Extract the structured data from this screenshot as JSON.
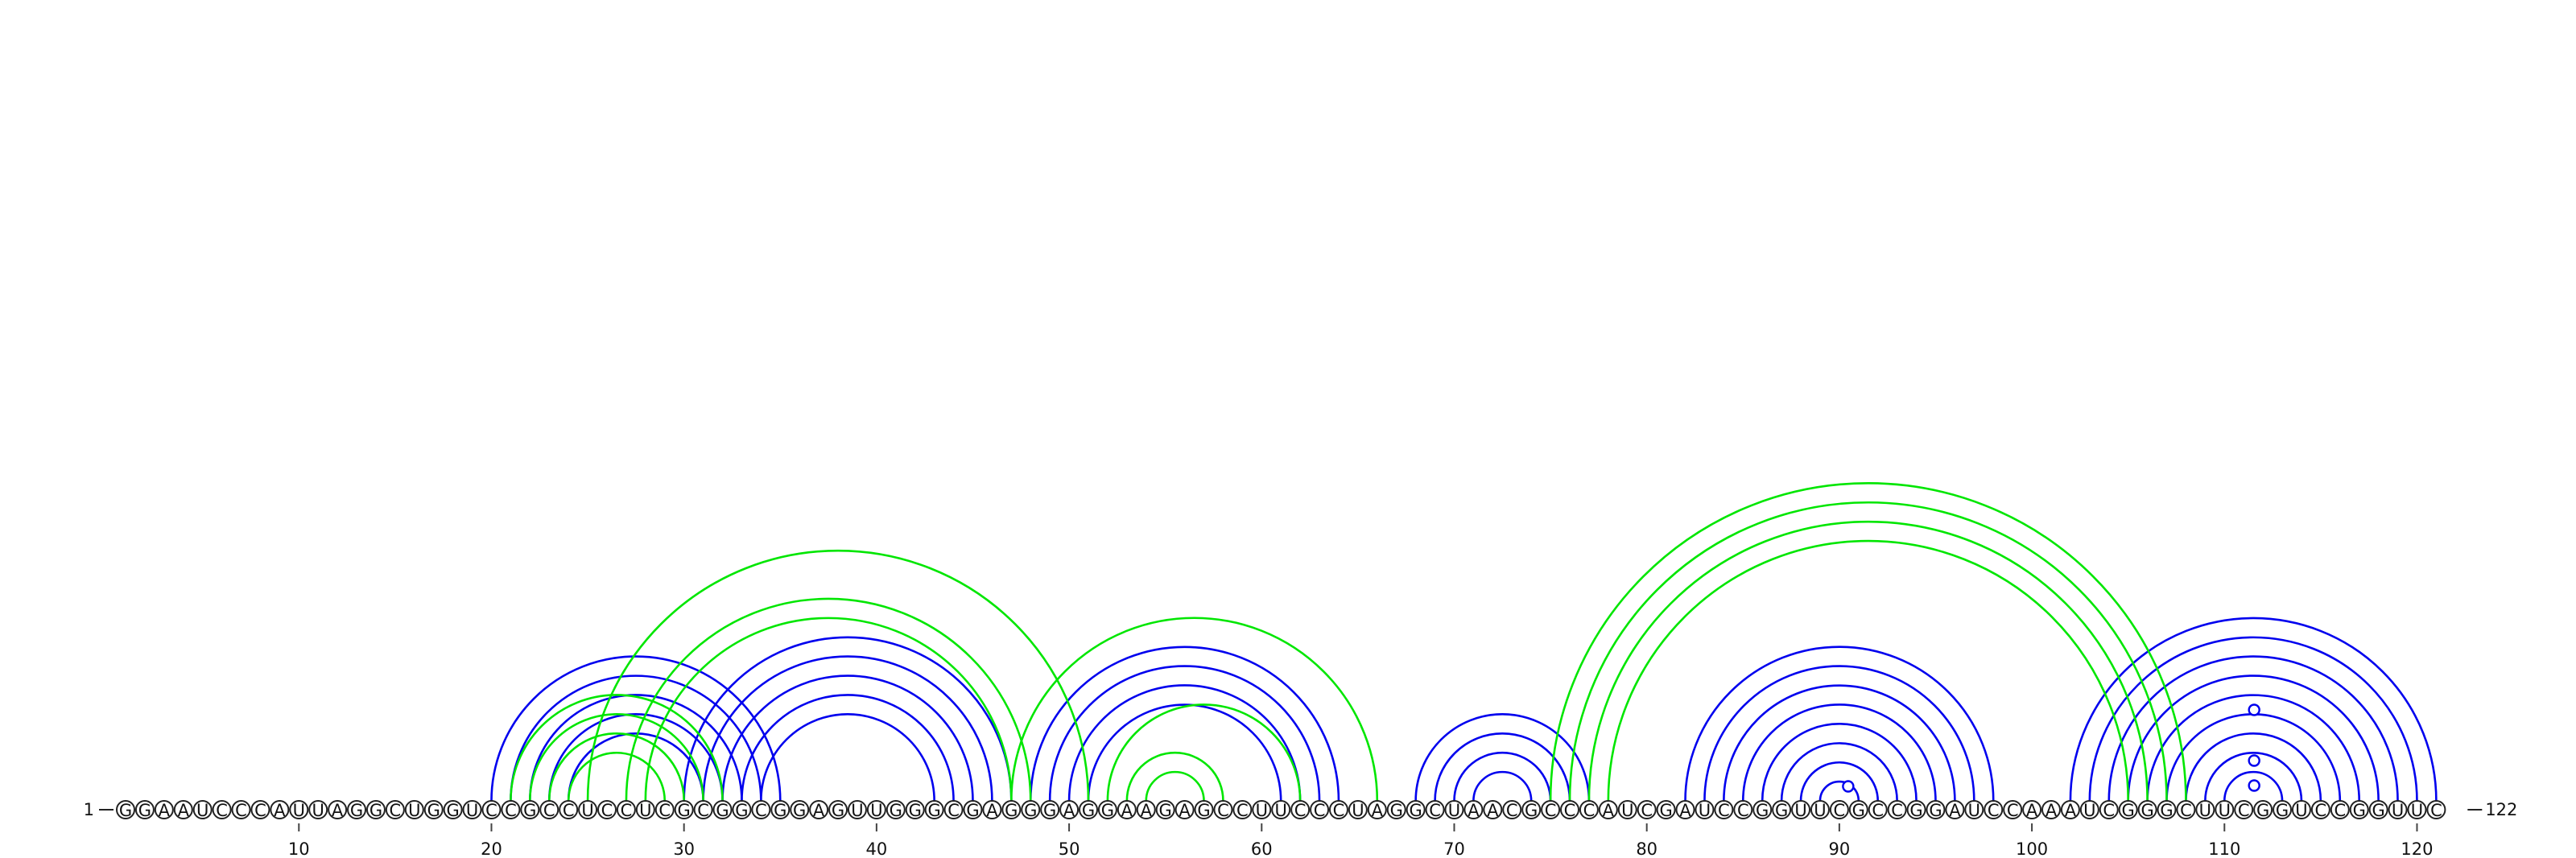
{
  "diagram": {
    "type": "rna-arc-diagram",
    "sequence": "GGAAUCCCAUUAGGCUGGUCCGCCUCCUCGCGGCGGAGUUGGGCGAGGGAGGAAGAGCCUUCCCUAGGCUAACGCCCAUCGAUCCGGUUCGCCGGAUCCAAAUCGGGCUUCGGUCCGGUUC",
    "length": 122,
    "start_label": "1",
    "end_label": "122",
    "tick_labels": [
      "10",
      "20",
      "30",
      "40",
      "50",
      "60",
      "70",
      "80",
      "90",
      "100",
      "110",
      "120"
    ],
    "colors": {
      "set_blue": "#0000ee",
      "set_green": "#00e600"
    },
    "blue_pairs": [
      [
        20,
        35
      ],
      [
        21,
        34
      ],
      [
        22,
        33
      ],
      [
        23,
        32
      ],
      [
        24,
        31
      ],
      [
        30,
        47
      ],
      [
        31,
        46
      ],
      [
        32,
        45
      ],
      [
        33,
        44
      ],
      [
        34,
        43
      ],
      [
        48,
        64
      ],
      [
        49,
        63
      ],
      [
        50,
        62
      ],
      [
        51,
        61
      ],
      [
        68,
        77
      ],
      [
        69,
        76
      ],
      [
        70,
        75
      ],
      [
        71,
        74
      ],
      [
        82,
        98
      ],
      [
        83,
        97
      ],
      [
        84,
        96
      ],
      [
        85,
        95
      ],
      [
        86,
        94
      ],
      [
        87,
        93
      ],
      [
        88,
        92
      ],
      [
        89,
        91
      ],
      [
        102,
        121
      ],
      [
        103,
        120
      ],
      [
        104,
        119
      ],
      [
        105,
        118
      ],
      [
        106,
        117
      ],
      [
        107,
        116
      ],
      [
        108,
        115
      ],
      [
        109,
        114
      ],
      [
        110,
        113
      ]
    ],
    "green_pairs": [
      [
        21,
        32
      ],
      [
        22,
        31
      ],
      [
        23,
        30
      ],
      [
        24,
        29
      ],
      [
        25,
        51
      ],
      [
        27,
        48
      ],
      [
        28,
        47
      ],
      [
        47,
        66
      ],
      [
        52,
        62
      ],
      [
        53,
        58
      ],
      [
        54,
        57
      ],
      [
        75,
        108
      ],
      [
        76,
        107
      ],
      [
        77,
        106
      ],
      [
        78,
        105
      ]
    ],
    "open_markers": [
      90,
      111,
      111,
      111
    ]
  }
}
